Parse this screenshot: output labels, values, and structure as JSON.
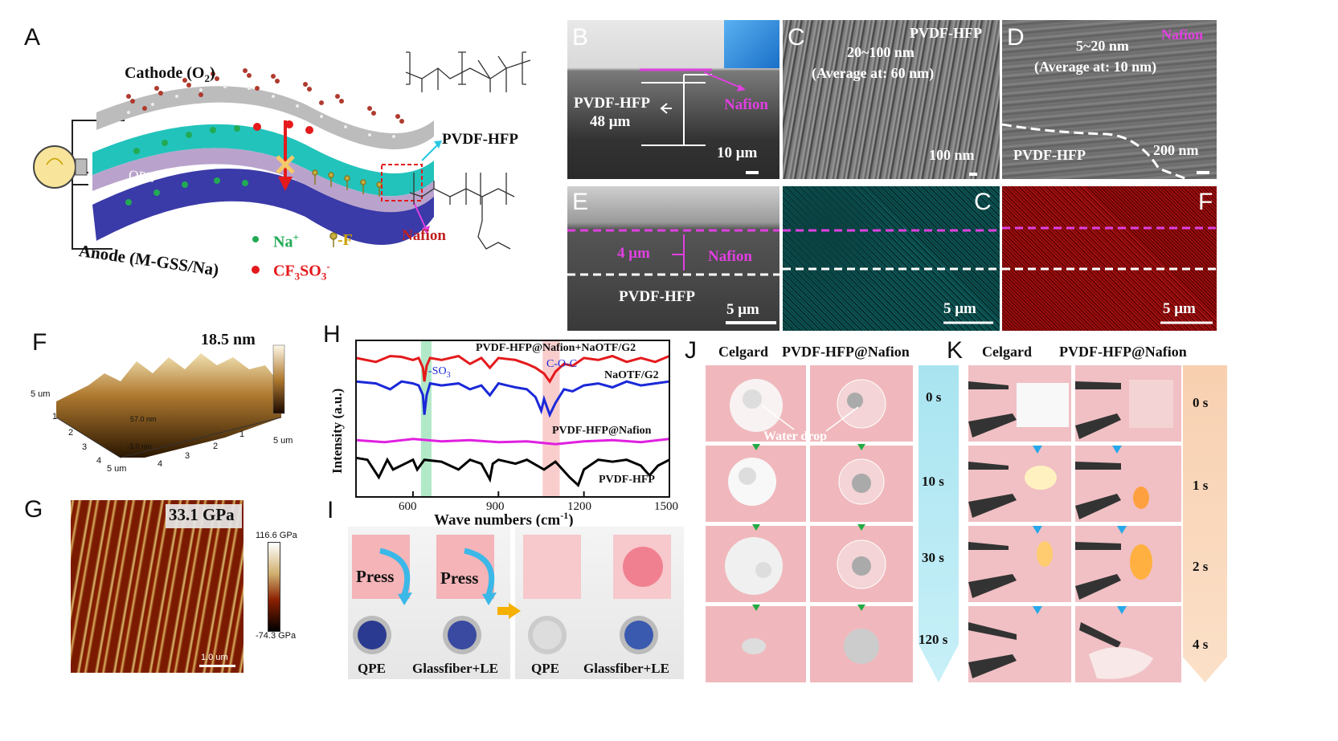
{
  "panels": {
    "A": "A",
    "B": "B",
    "C": "C",
    "D": "D",
    "E": "E",
    "E2": "C",
    "E3": "F",
    "F": "F",
    "G": "G",
    "H": "H",
    "I": "I",
    "J": "J",
    "K": "K"
  },
  "panelA": {
    "cathode": "Cathode (O",
    "cathode_sub": "2",
    "cathode_close": ")",
    "anode": "Anode (M-GSS/Na)",
    "qpe": "QPE",
    "pvdf_hfp": "PVDF-HFP",
    "nafion": "Nafion",
    "legend_na": "Na",
    "legend_na_sup": "+",
    "legend_f": "-F",
    "legend_cf3so3": "CF",
    "legend_cf3so3_s1": "3",
    "legend_cf3so3_mid": "SO",
    "legend_cf3so3_s2": "3",
    "legend_cf3so3_sup": "-",
    "colors": {
      "qpe": "#1ec8c0",
      "anode": "#3a3aa8",
      "cathode": "#b8b8b8",
      "na": "#22aa55",
      "cf3so3": "#e41a1c",
      "o2": "#c04030"
    }
  },
  "panelB": {
    "pvdf": "PVDF-HFP",
    "thickness": "48 μm",
    "nafion": "Nafion",
    "scale": "10 μm"
  },
  "panelC": {
    "title": "PVDF-HFP",
    "range": "20~100 nm",
    "avg": "(Average at: 60 nm)",
    "scale": "100 nm"
  },
  "panelD": {
    "title": "Nafion",
    "range": "5~20 nm",
    "avg": "(Average at: 10 nm)",
    "layer": "PVDF-HFP",
    "scale": "200 nm"
  },
  "panelE": {
    "thickness": "4 μm",
    "nafion": "Nafion",
    "pvdf": "PVDF-HFP",
    "scale": "5 μm"
  },
  "panelE2": {
    "scale": "5 μm"
  },
  "panelE3": {
    "scale": "5 μm"
  },
  "panelF": {
    "height_label": "18.5 nm",
    "axis_x1": "5 um",
    "axis_x2": "5 um",
    "axis_y": "5 um",
    "z_top": "57.0 nm",
    "z_bot": "-3.0 nm",
    "ticks": [
      "1",
      "2",
      "3",
      "4",
      "1",
      "2",
      "3",
      "4"
    ]
  },
  "panelG": {
    "modulus": "33.1 GPa",
    "cbar_max": "116.6 GPa",
    "cbar_min": "-74.3 GPa",
    "scale": "1.0 um"
  },
  "chart_data": {
    "type": "line",
    "xlabel": "Wave numbers (cm",
    "xlabel_sup": "-1",
    "xlabel_close": ")",
    "ylabel": "Intensity (a.u.)",
    "xlim": [
      400,
      1500
    ],
    "xticks": [
      "600",
      "900",
      "1200",
      "1500"
    ],
    "annotations": [
      "-SO",
      "C-O-C"
    ],
    "annotation_sub": "3",
    "series": [
      {
        "name": "PVDF-HFP@Nafion+NaOTF/G2",
        "color": "#e41a1c",
        "x": [
          400,
          470,
          520,
          560,
          600,
          620,
          635,
          640,
          648,
          660,
          700,
          760,
          800,
          840,
          870,
          900,
          960,
          1000,
          1030,
          1060,
          1080,
          1100,
          1130,
          1160,
          1200,
          1250,
          1300,
          1350,
          1400,
          1450,
          1500
        ],
        "y": [
          3.55,
          3.45,
          3.6,
          3.58,
          3.5,
          3.55,
          3.3,
          2.95,
          3.35,
          3.55,
          3.5,
          3.6,
          3.4,
          3.55,
          3.3,
          3.55,
          3.5,
          3.4,
          3.3,
          3.15,
          2.95,
          3.2,
          3.4,
          3.35,
          3.55,
          3.5,
          3.6,
          3.45,
          3.55,
          3.45,
          3.6
        ]
      },
      {
        "name": "NaOTF/G2",
        "color": "#1a28d8",
        "x": [
          400,
          470,
          520,
          560,
          600,
          620,
          635,
          640,
          648,
          660,
          700,
          760,
          800,
          840,
          870,
          900,
          960,
          1000,
          1030,
          1050,
          1060,
          1080,
          1100,
          1130,
          1160,
          1200,
          1250,
          1300,
          1350,
          1400,
          1450,
          1500
        ],
        "y": [
          2.95,
          2.9,
          2.75,
          2.95,
          2.9,
          2.85,
          2.6,
          2.1,
          2.6,
          2.9,
          2.85,
          2.9,
          2.75,
          2.85,
          2.6,
          2.9,
          2.8,
          2.75,
          2.55,
          2.2,
          2.5,
          2.1,
          2.4,
          2.75,
          2.7,
          2.85,
          2.9,
          2.8,
          2.95,
          2.85,
          2.9,
          2.95
        ]
      },
      {
        "name": "PVDF-HFP@Nafion",
        "color": "#e020e0",
        "x": [
          400,
          500,
          600,
          700,
          800,
          900,
          1000,
          1100,
          1200,
          1300,
          1400,
          1500
        ],
        "y": [
          1.45,
          1.4,
          1.48,
          1.42,
          1.45,
          1.4,
          1.42,
          1.35,
          1.42,
          1.45,
          1.4,
          1.48
        ]
      },
      {
        "name": "PVDF-HFP",
        "color": "#000000",
        "x": [
          400,
          440,
          480,
          510,
          530,
          600,
          615,
          640,
          700,
          760,
          800,
          840,
          870,
          880,
          900,
          960,
          1000,
          1060,
          1100,
          1150,
          1180,
          1200,
          1250,
          1300,
          1350,
          1400,
          1430,
          1460,
          1500
        ],
        "y": [
          1.0,
          0.95,
          0.5,
          0.95,
          0.7,
          0.95,
          0.7,
          0.95,
          0.9,
          0.7,
          0.95,
          0.85,
          0.45,
          0.85,
          0.95,
          0.85,
          0.95,
          0.7,
          0.9,
          0.5,
          0.3,
          0.7,
          0.95,
          0.9,
          0.95,
          0.8,
          0.55,
          0.8,
          0.95
        ]
      }
    ],
    "highlights": [
      {
        "from": 628,
        "to": 665,
        "color": "#90e0b0"
      },
      {
        "from": 1055,
        "to": 1115,
        "color": "#f8b8b8"
      }
    ]
  },
  "panelI": {
    "press": "Press",
    "labels": [
      "QPE",
      "Glassfiber+LE",
      "QPE",
      "Glassfiber+LE"
    ]
  },
  "panelJ": {
    "col1": "Celgard",
    "col2": "PVDF-HFP@Nafion",
    "water_drop": "Water drop",
    "times": [
      "0 s",
      "10 s",
      "30 s",
      "120 s"
    ]
  },
  "panelK": {
    "col1": "Celgard",
    "col2": "PVDF-HFP@Nafion",
    "times": [
      "0 s",
      "1 s",
      "2 s",
      "4 s"
    ]
  }
}
